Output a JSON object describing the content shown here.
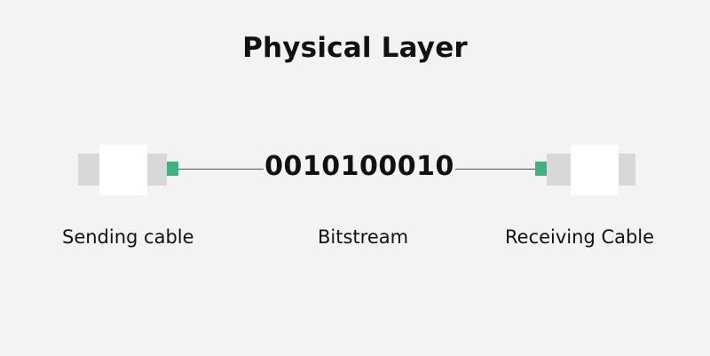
{
  "title": "Physical Layer",
  "bitstream": "0010100010",
  "labels": {
    "sending": "Sending cable",
    "bitstream": "Bitstream",
    "receiving": "Receiving Cable"
  },
  "colors": {
    "background": "#f3f3f3",
    "connector_tip": "#3fb37f",
    "connector_side": "#d8d8d8",
    "connector_body": "#ffffff",
    "text": "#111111"
  }
}
